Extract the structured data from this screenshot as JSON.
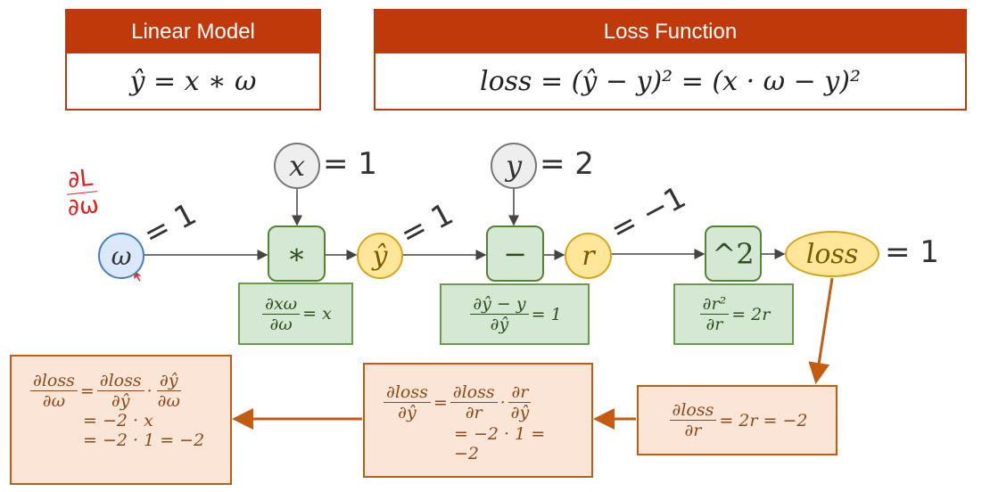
{
  "linear_model": {
    "title": "Linear Model",
    "formula": "ŷ = x ∗ ω"
  },
  "loss_function": {
    "title": "Loss Function",
    "formula": "loss = (ŷ − y)² = (x · ω − y)²"
  },
  "annotation": {
    "handwritten_num": "∂L",
    "handwritten_den": "∂ω"
  },
  "nodes": {
    "x": {
      "label": "x",
      "value": "= 1"
    },
    "y": {
      "label": "y",
      "value": "= 2"
    },
    "w": {
      "label": "ω",
      "value": "= 1"
    },
    "mul": {
      "label": "∗"
    },
    "yhat": {
      "label": "ŷ",
      "value": "= 1"
    },
    "sub": {
      "label": "−"
    },
    "r": {
      "label": "r",
      "value": "= −1"
    },
    "sq": {
      "label": "^2"
    },
    "loss": {
      "label": "loss",
      "value": "= 1"
    }
  },
  "local_grads": {
    "mul": {
      "num": "∂xω",
      "den": "∂ω",
      "rhs": "= x"
    },
    "sub": {
      "num": "∂ŷ − y",
      "den": "∂ŷ",
      "rhs": "= 1"
    },
    "sq": {
      "num": "∂r²",
      "den": "∂r",
      "rhs": "= 2r"
    }
  },
  "backprop": {
    "dloss_dr": {
      "num": "∂loss",
      "den": "∂r",
      "rhs": "= 2r = −2"
    },
    "dloss_dyhat": {
      "l_num": "∂loss",
      "l_den": "∂ŷ",
      "eq": "=",
      "a_num": "∂loss",
      "a_den": "∂r",
      "dot": "·",
      "b_num": "∂r",
      "b_den": "∂ŷ",
      "line2": "= −2 · 1 = −2"
    },
    "dloss_dw": {
      "l_num": "∂loss",
      "l_den": "∂ω",
      "eq": "=",
      "a_num": "∂loss",
      "a_den": "∂ŷ",
      "dot": "·",
      "b_num": "∂ŷ",
      "b_den": "∂ω",
      "line2": "= −2 · x",
      "line3": "= −2 · 1 = −2"
    }
  },
  "colors": {
    "header": "#c0390b",
    "forward_node": "#d5e8d4",
    "backward_box": "#fbe5d6",
    "backward_arrow": "#c55a11",
    "annotation": "#e02020"
  }
}
